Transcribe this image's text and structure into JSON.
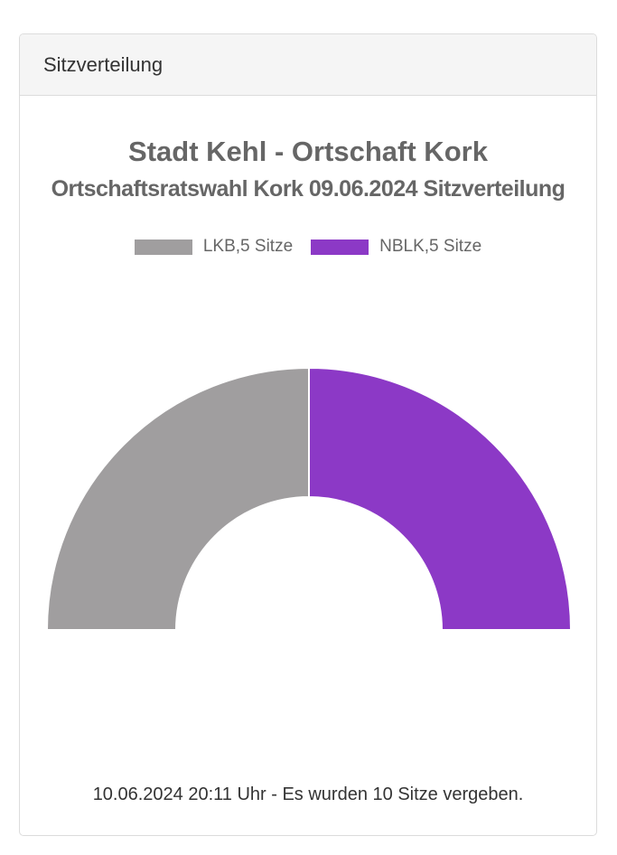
{
  "card": {
    "header_title": "Sitzverteilung"
  },
  "chart_data": {
    "type": "pie",
    "variant": "semicircle-donut",
    "title": "Stadt Kehl - Ortschaft Kork",
    "subtitle": "Ortschaftsratswahl Kork 09.06.2024 Sitzverteilung",
    "legend_placement": "top",
    "series": [
      {
        "name": "LKB",
        "legend_label": "LKB,5 Sitze",
        "value": 5,
        "color": "#a09e9f"
      },
      {
        "name": "NBLK",
        "legend_label": "NBLK,5 Sitze",
        "value": 5,
        "color": "#8c39c6"
      }
    ]
  },
  "footer": {
    "text": "10.06.2024 20:11 Uhr - Es wurden 10 Sitze vergeben."
  }
}
